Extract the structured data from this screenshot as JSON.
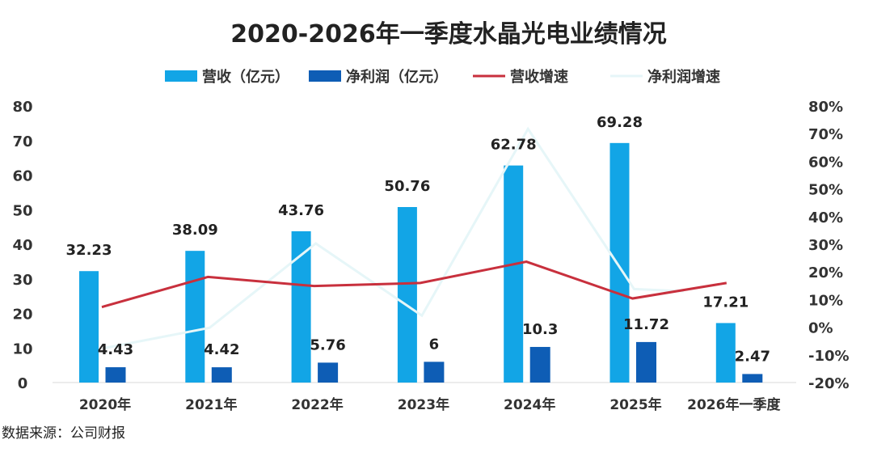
{
  "chart_data": {
    "type": "bar",
    "title": "2020-2026年一季度水晶光电业绩情况",
    "categories": [
      "2020年",
      "2021年",
      "2022年",
      "2023年",
      "2024年",
      "2025年",
      "2026年一季度"
    ],
    "series": [
      {
        "name": "营收（亿元）",
        "type": "bar",
        "axis": "left",
        "color": "#12a5e6",
        "values": [
          32.23,
          38.09,
          43.76,
          50.76,
          62.78,
          69.28,
          17.21
        ],
        "labels": [
          "32.23",
          "38.09",
          "43.76",
          "50.76",
          "62.78",
          "69.28",
          "17.21"
        ]
      },
      {
        "name": "净利润（亿元）",
        "type": "bar",
        "axis": "left",
        "color": "#0e5db5",
        "values": [
          4.43,
          4.42,
          5.76,
          6,
          10.3,
          11.72,
          2.47
        ],
        "labels": [
          "4.43",
          "4.42",
          "5.76",
          "6",
          "10.3",
          "11.72",
          "2.47"
        ]
      },
      {
        "name": "营收增速",
        "type": "line",
        "axis": "right",
        "color": "#c8303d",
        "values": [
          7.3,
          18.2,
          14.9,
          16.0,
          23.7,
          10.4,
          16.0
        ]
      },
      {
        "name": "净利润增速",
        "type": "line",
        "axis": "right",
        "color": "#e6f6f8",
        "values": [
          -7.6,
          -0.2,
          30.3,
          4.2,
          71.7,
          13.8,
          13.0
        ]
      }
    ],
    "ylim": [
      0,
      80
    ],
    "yticks": [
      "0",
      "10",
      "20",
      "30",
      "40",
      "50",
      "60",
      "70",
      "80"
    ],
    "y2lim": [
      -20,
      80
    ],
    "y2ticks": [
      "-20%",
      "-10%",
      "0%",
      "10%",
      "20%",
      "30%",
      "40%",
      "50%",
      "60%",
      "70%",
      "80%"
    ],
    "legend": "top",
    "grid": false
  },
  "source": "数据来源：公司财报"
}
